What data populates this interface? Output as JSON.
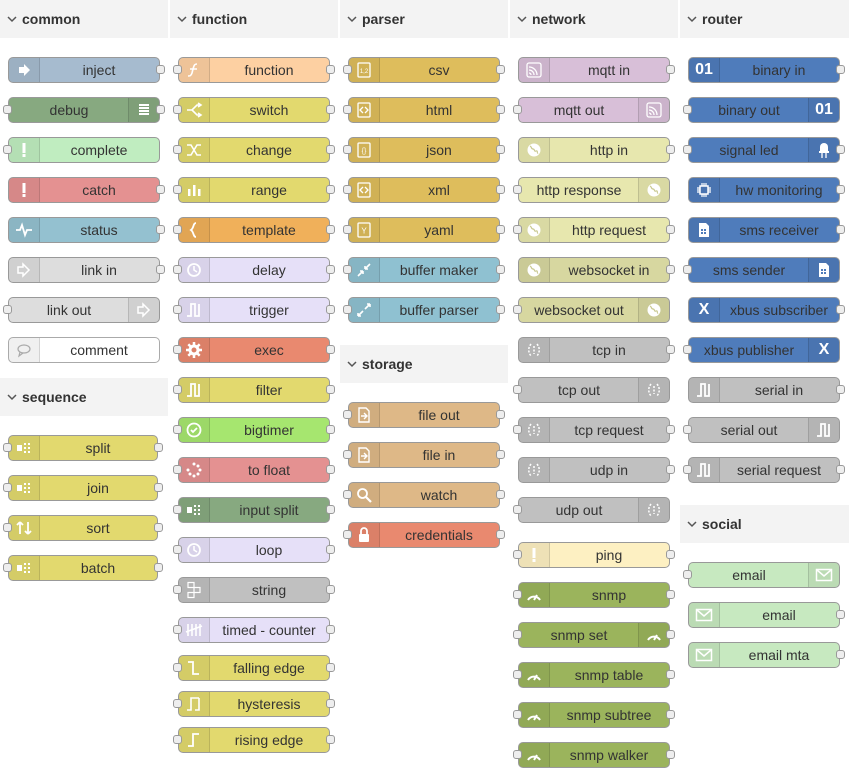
{
  "categories": [
    {
      "id": "common",
      "title": "common"
    },
    {
      "id": "sequence",
      "title": "sequence"
    },
    {
      "id": "function",
      "title": "function"
    },
    {
      "id": "parser",
      "title": "parser"
    },
    {
      "id": "storage",
      "title": "storage"
    },
    {
      "id": "network",
      "title": "network"
    },
    {
      "id": "router",
      "title": "router"
    },
    {
      "id": "social",
      "title": "social"
    }
  ],
  "nodes": {
    "common": [
      {
        "label": "inject",
        "color": "#a6bbcf",
        "icon": "inject-icon"
      },
      {
        "label": "debug",
        "color": "#87a980",
        "icon": "debug-icon"
      },
      {
        "label": "complete",
        "color": "#c0edc0",
        "icon": "complete-icon"
      },
      {
        "label": "catch",
        "color": "#e49191",
        "icon": "catch-icon"
      },
      {
        "label": "status",
        "color": "#94c1d0",
        "icon": "status-icon"
      },
      {
        "label": "link in",
        "color": "#dddddd",
        "icon": "link-in-icon"
      },
      {
        "label": "link out",
        "color": "#dddddd",
        "icon": "link-out-icon"
      },
      {
        "label": "comment",
        "color": "#ffffff",
        "icon": "comment-icon"
      }
    ],
    "sequence": [
      {
        "label": "split",
        "color": "#e2d96e",
        "icon": "split-icon"
      },
      {
        "label": "join",
        "color": "#e2d96e",
        "icon": "join-icon"
      },
      {
        "label": "sort",
        "color": "#e2d96e",
        "icon": "sort-icon"
      },
      {
        "label": "batch",
        "color": "#e2d96e",
        "icon": "batch-icon"
      }
    ],
    "function": [
      {
        "label": "function",
        "color": "#fdd0a2",
        "icon": "function-icon"
      },
      {
        "label": "switch",
        "color": "#e2d96e",
        "icon": "switch-icon"
      },
      {
        "label": "change",
        "color": "#e2d96e",
        "icon": "change-icon"
      },
      {
        "label": "range",
        "color": "#e2d96e",
        "icon": "range-icon"
      },
      {
        "label": "template",
        "color": "#f0b05a",
        "icon": "template-icon"
      },
      {
        "label": "delay",
        "color": "#e6e0f8",
        "icon": "delay-icon"
      },
      {
        "label": "trigger",
        "color": "#e6e0f8",
        "icon": "trigger-icon"
      },
      {
        "label": "exec",
        "color": "#e9896f",
        "icon": "exec-icon"
      },
      {
        "label": "filter",
        "color": "#e2d96e",
        "icon": "filter-icon"
      },
      {
        "label": "bigtimer",
        "color": "#a6e66f",
        "icon": "bigtimer-icon"
      },
      {
        "label": "to float",
        "color": "#e49191",
        "icon": "to-float-icon"
      },
      {
        "label": "input split",
        "color": "#87a980",
        "icon": "input-split-icon"
      },
      {
        "label": "loop",
        "color": "#e6e0f8",
        "icon": "loop-icon"
      },
      {
        "label": "string",
        "color": "#c0c0c0",
        "icon": "string-icon"
      },
      {
        "label": "timed - counter",
        "color": "#e6e0f8",
        "icon": "timed-counter-icon"
      },
      {
        "label": "falling edge",
        "color": "#e2d96e",
        "icon": "falling-edge-icon"
      },
      {
        "label": "hysteresis",
        "color": "#e2d96e",
        "icon": "hysteresis-icon"
      },
      {
        "label": "rising edge",
        "color": "#e2d96e",
        "icon": "rising-edge-icon"
      }
    ],
    "parser": [
      {
        "label": "csv",
        "color": "#debd5c",
        "icon": "csv-icon"
      },
      {
        "label": "html",
        "color": "#debd5c",
        "icon": "html-icon"
      },
      {
        "label": "json",
        "color": "#debd5c",
        "icon": "json-icon"
      },
      {
        "label": "xml",
        "color": "#debd5c",
        "icon": "xml-icon"
      },
      {
        "label": "yaml",
        "color": "#debd5c",
        "icon": "yaml-icon"
      },
      {
        "label": "buffer maker",
        "color": "#8fc1d1",
        "icon": "buffer-maker-icon"
      },
      {
        "label": "buffer parser",
        "color": "#8fc1d1",
        "icon": "buffer-parser-icon"
      }
    ],
    "storage": [
      {
        "label": "file out",
        "color": "#deb887",
        "icon": "file-out-icon"
      },
      {
        "label": "file in",
        "color": "#deb887",
        "icon": "file-in-icon"
      },
      {
        "label": "watch",
        "color": "#deb887",
        "icon": "watch-icon"
      },
      {
        "label": "credentials",
        "color": "#e9896f",
        "icon": "lock-icon"
      }
    ],
    "network": [
      {
        "label": "mqtt in",
        "color": "#d8bfd8",
        "icon": "mqtt-icon"
      },
      {
        "label": "mqtt out",
        "color": "#d8bfd8",
        "icon": "mqtt-icon"
      },
      {
        "label": "http in",
        "color": "#e7e7ae",
        "icon": "globe-icon"
      },
      {
        "label": "http response",
        "color": "#e7e7ae",
        "icon": "globe-icon"
      },
      {
        "label": "http request",
        "color": "#e7e7ae",
        "icon": "globe-icon"
      },
      {
        "label": "websocket in",
        "color": "#d7d7a0",
        "icon": "globe-icon"
      },
      {
        "label": "websocket out",
        "color": "#d7d7a0",
        "icon": "globe-icon"
      },
      {
        "label": "tcp in",
        "color": "#c0c0c0",
        "icon": "bridge-icon"
      },
      {
        "label": "tcp out",
        "color": "#c0c0c0",
        "icon": "bridge-icon"
      },
      {
        "label": "tcp request",
        "color": "#c0c0c0",
        "icon": "bridge-icon"
      },
      {
        "label": "udp in",
        "color": "#c0c0c0",
        "icon": "bridge-icon"
      },
      {
        "label": "udp out",
        "color": "#c0c0c0",
        "icon": "bridge-icon"
      },
      {
        "label": "ping",
        "color": "#fdf0c2",
        "icon": "alert-icon"
      },
      {
        "label": "snmp",
        "color": "#9bb45c",
        "icon": "snmp-icon"
      },
      {
        "label": "snmp set",
        "color": "#9bb45c",
        "icon": "snmp-icon"
      },
      {
        "label": "snmp table",
        "color": "#9bb45c",
        "icon": "snmp-icon"
      },
      {
        "label": "snmp subtree",
        "color": "#9bb45c",
        "icon": "snmp-icon"
      },
      {
        "label": "snmp walker",
        "color": "#9bb45c",
        "icon": "snmp-icon"
      }
    ],
    "router": [
      {
        "label": "binary in",
        "color": "#4f7cbb",
        "icon": "binary-icon",
        "glyph": "01"
      },
      {
        "label": "binary out",
        "color": "#4f7cbb",
        "icon": "binary-icon",
        "glyph": "01"
      },
      {
        "label": "signal led",
        "color": "#4f7cbb",
        "icon": "led-icon"
      },
      {
        "label": "hw monitoring",
        "color": "#4f7cbb",
        "icon": "chip-icon"
      },
      {
        "label": "sms receiver",
        "color": "#4f7cbb",
        "icon": "sim-icon"
      },
      {
        "label": "sms sender",
        "color": "#4f7cbb",
        "icon": "sim-icon"
      },
      {
        "label": "xbus subscriber",
        "color": "#4f7cbb",
        "icon": "xbus-icon",
        "glyph": "X"
      },
      {
        "label": "xbus publisher",
        "color": "#4f7cbb",
        "icon": "xbus-icon",
        "glyph": "X"
      },
      {
        "label": "serial in",
        "color": "#c0c0c0",
        "icon": "serial-icon"
      },
      {
        "label": "serial out",
        "color": "#c0c0c0",
        "icon": "serial-icon"
      },
      {
        "label": "serial request",
        "color": "#c0c0c0",
        "icon": "serial-icon"
      }
    ],
    "social": [
      {
        "label": "email",
        "color": "#c7e9c0",
        "icon": "envelope-icon"
      },
      {
        "label": "email",
        "color": "#c7e9c0",
        "icon": "envelope-icon"
      },
      {
        "label": "email mta",
        "color": "#c7e9c0",
        "icon": "envelope-icon"
      }
    ]
  }
}
